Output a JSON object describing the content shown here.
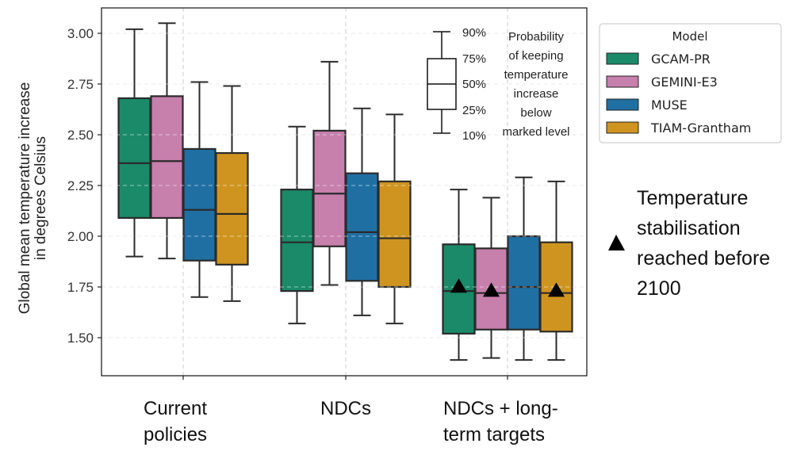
{
  "chart_data": {
    "type": "boxplot",
    "ylabel": [
      "Global mean temperature increase",
      "in degrees Celsius"
    ],
    "xlabel": "",
    "ylim": [
      1.33,
      3.13
    ],
    "yticks": [
      1.5,
      1.75,
      2.0,
      2.25,
      2.5,
      2.75,
      3.0
    ],
    "ytick_labels": [
      "1.50",
      "1.75",
      "2.00",
      "2.25",
      "2.50",
      "2.75",
      "3.00"
    ],
    "grid": true,
    "categories": [
      {
        "lines": [
          "Current",
          "policies"
        ],
        "align": "left"
      },
      {
        "lines": [
          "NDCs"
        ],
        "align": "center"
      },
      {
        "lines": [
          "NDCs + long-",
          "term targets"
        ],
        "align": "left"
      }
    ],
    "legend": {
      "title": "Model",
      "placement": "right-top-outside"
    },
    "series": [
      {
        "name": "GCAM-PR",
        "color": "#1a8a68",
        "boxes": [
          {
            "p10": 1.9,
            "p25": 2.09,
            "p50": 2.36,
            "p75": 2.68,
            "p90": 3.02,
            "stabilised": false
          },
          {
            "p10": 1.57,
            "p25": 1.73,
            "p50": 1.97,
            "p75": 2.23,
            "p90": 2.54,
            "stabilised": false
          },
          {
            "p10": 1.39,
            "p25": 1.52,
            "p50": 1.73,
            "p75": 1.96,
            "p90": 2.23,
            "stabilised": true,
            "marker_value": 1.75
          }
        ]
      },
      {
        "name": "GEMINI-E3",
        "color": "#c77fac",
        "boxes": [
          {
            "p10": 1.89,
            "p25": 2.09,
            "p50": 2.37,
            "p75": 2.69,
            "p90": 3.05,
            "stabilised": false
          },
          {
            "p10": 1.76,
            "p25": 1.95,
            "p50": 2.21,
            "p75": 2.52,
            "p90": 2.86,
            "stabilised": false
          },
          {
            "p10": 1.4,
            "p25": 1.54,
            "p50": 1.72,
            "p75": 1.94,
            "p90": 2.19,
            "stabilised": true,
            "marker_value": 1.73
          }
        ]
      },
      {
        "name": "MUSE",
        "color": "#1f6fa3",
        "boxes": [
          {
            "p10": 1.7,
            "p25": 1.88,
            "p50": 2.13,
            "p75": 2.43,
            "p90": 2.76,
            "stabilised": false
          },
          {
            "p10": 1.61,
            "p25": 1.78,
            "p50": 2.02,
            "p75": 2.31,
            "p90": 2.63,
            "stabilised": false
          },
          {
            "p10": 1.39,
            "p25": 1.54,
            "p50": 1.75,
            "p75": 2.0,
            "p90": 2.29,
            "stabilised": false
          }
        ]
      },
      {
        "name": "TIAM-Grantham",
        "color": "#cf9420",
        "boxes": [
          {
            "p10": 1.68,
            "p25": 1.86,
            "p50": 2.11,
            "p75": 2.41,
            "p90": 2.74,
            "stabilised": false
          },
          {
            "p10": 1.57,
            "p25": 1.75,
            "p50": 1.99,
            "p75": 2.27,
            "p90": 2.6,
            "stabilised": false
          },
          {
            "p10": 1.39,
            "p25": 1.53,
            "p50": 1.72,
            "p75": 1.97,
            "p90": 2.27,
            "stabilised": true,
            "marker_value": 1.73
          }
        ]
      }
    ],
    "inset_key": {
      "percentiles": [
        "90%",
        "75%",
        "50%",
        "25%",
        "10%"
      ],
      "text": [
        "Probability",
        "of keeping",
        "temperature",
        "increase",
        "below",
        "marked level"
      ]
    },
    "annotation": {
      "marker": "triangle",
      "text": [
        "Temperature",
        "stabilisation",
        "reached before",
        "2100"
      ]
    }
  }
}
